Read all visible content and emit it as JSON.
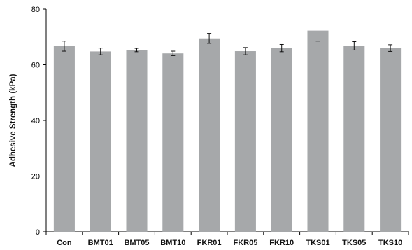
{
  "chart_data": {
    "type": "bar",
    "title": "",
    "xlabel": "",
    "ylabel": "Adhesive Strength (kPa)",
    "ylim": [
      0,
      80
    ],
    "yticks": [
      0,
      20,
      40,
      60,
      80
    ],
    "grid": false,
    "categories": [
      "Con",
      "BMT01",
      "BMT05",
      "BMT10",
      "FKR01",
      "FKR05",
      "FKR10",
      "TKS01",
      "TKS05",
      "TKS10"
    ],
    "values": [
      66.7,
      64.8,
      65.3,
      64.1,
      69.5,
      64.9,
      66.0,
      72.3,
      66.8,
      66.0
    ],
    "errors": [
      1.8,
      1.2,
      0.6,
      0.8,
      1.8,
      1.3,
      1.3,
      3.8,
      1.5,
      1.2
    ],
    "colors": {
      "bar": "#a6a8aa",
      "axis": "#000000"
    }
  }
}
